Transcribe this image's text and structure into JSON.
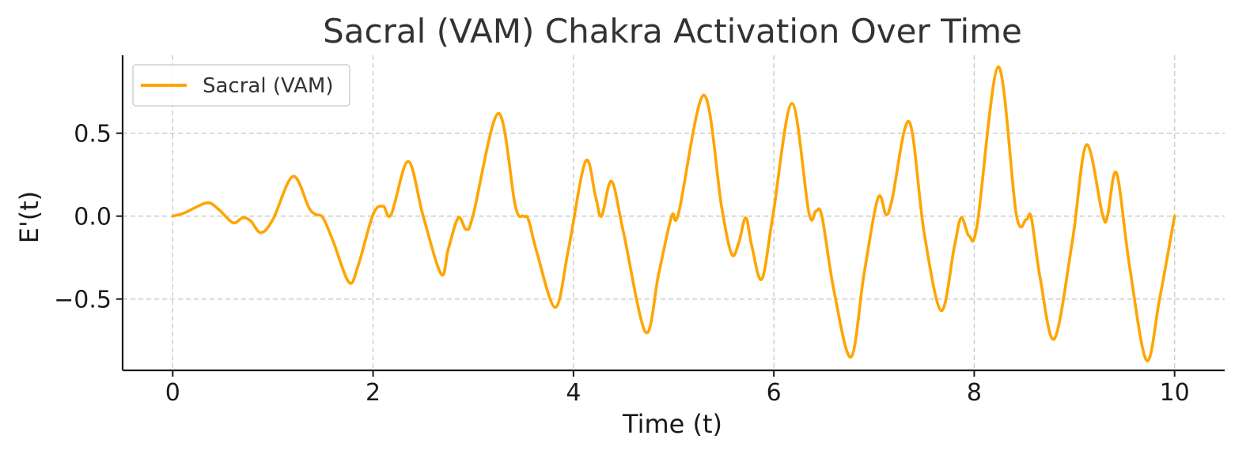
{
  "chart_data": {
    "type": "line",
    "title": "Sacral (VAM) Chakra Activation Over Time",
    "xlabel": "Time (t)",
    "ylabel": "E'(t)",
    "xlim": [
      -0.5,
      10.5
    ],
    "ylim": [
      -0.93,
      0.97
    ],
    "xticks": [
      0,
      2,
      4,
      6,
      8,
      10
    ],
    "xtick_labels": [
      "0",
      "2",
      "4",
      "6",
      "8",
      "10"
    ],
    "yticks": [
      -0.5,
      0.0,
      0.5
    ],
    "ytick_labels": [
      "−0.5",
      "0.0",
      "0.5"
    ],
    "grid": true,
    "legend": {
      "placement": "top-left"
    },
    "series": [
      {
        "name": "Sacral (VAM)",
        "color": "#FFA500",
        "x": [
          0,
          0.12,
          0.34,
          0.46,
          0.6,
          0.7,
          0.78,
          0.88,
          1.0,
          1.2,
          1.36,
          1.43,
          1.5,
          1.6,
          1.76,
          1.85,
          2.0,
          2.1,
          2.18,
          2.35,
          2.5,
          2.68,
          2.75,
          2.85,
          2.93,
          3.0,
          3.25,
          3.42,
          3.5,
          3.55,
          3.64,
          3.82,
          3.95,
          4.12,
          4.22,
          4.28,
          4.38,
          4.5,
          4.72,
          4.85,
          4.98,
          5.05,
          5.3,
          5.48,
          5.58,
          5.65,
          5.72,
          5.78,
          5.88,
          5.99,
          6.18,
          6.35,
          6.42,
          6.48,
          6.6,
          6.77,
          6.9,
          7.04,
          7.12,
          7.18,
          7.35,
          7.5,
          7.67,
          7.8,
          7.87,
          7.95,
          8.03,
          8.24,
          8.42,
          8.52,
          8.57,
          8.66,
          8.8,
          8.98,
          9.12,
          9.28,
          9.33,
          9.42,
          9.55,
          9.72,
          9.85,
          10.0
        ],
        "y": [
          0.0,
          0.02,
          0.08,
          0.04,
          -0.04,
          -0.01,
          -0.03,
          -0.1,
          -0.02,
          0.24,
          0.05,
          0.01,
          -0.01,
          -0.15,
          -0.4,
          -0.3,
          0.01,
          0.06,
          0.01,
          0.33,
          0.0,
          -0.35,
          -0.2,
          -0.01,
          -0.08,
          0.01,
          0.62,
          0.06,
          0.0,
          -0.02,
          -0.23,
          -0.55,
          -0.2,
          0.33,
          0.12,
          0.0,
          0.21,
          -0.1,
          -0.7,
          -0.35,
          0.0,
          0.02,
          0.73,
          0.05,
          -0.23,
          -0.16,
          -0.01,
          -0.18,
          -0.38,
          0.0,
          0.68,
          0.02,
          0.03,
          0.0,
          -0.45,
          -0.85,
          -0.35,
          0.11,
          0.01,
          0.1,
          0.57,
          -0.1,
          -0.57,
          -0.19,
          -0.01,
          -0.12,
          -0.05,
          0.9,
          0.01,
          -0.02,
          -0.01,
          -0.38,
          -0.74,
          -0.15,
          0.43,
          0.01,
          0.0,
          0.26,
          -0.3,
          -0.87,
          -0.5,
          0.0
        ]
      }
    ]
  }
}
